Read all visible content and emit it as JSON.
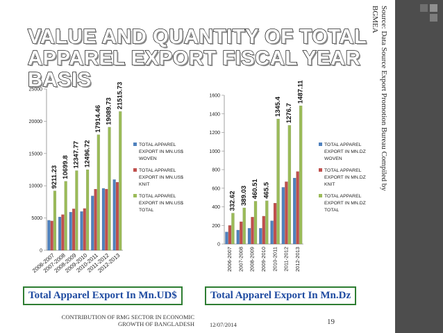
{
  "slide": {
    "title_line1": "VALUE AND QUANTITY OF TOTAL",
    "title_line2": "APPAREL EXPORT FISCAL YEAR BASIS",
    "source_line1": "Source: Data Source Export Promotion Bureau  Compiled by",
    "source_line2": "BGMEA",
    "caption_left": "Total Apparel Export In Mn.UD$",
    "caption_right": "Total Apparel Export In Mn.Dz",
    "footer_line1": "CONTRIBUTION OF RMG SECTOR IN ECONOMIC",
    "footer_line2": "GROWTH OF BANGLADESH",
    "date": "12/07/2014",
    "page_number": "19"
  },
  "colors": {
    "woven": "#4f81bd",
    "knit": "#c0504d",
    "total": "#9bbb59",
    "accent_bar": "#4d4d4d",
    "caption_border": "#2e7d32",
    "caption_text": "#1e4aa0"
  },
  "chart_data": [
    {
      "type": "bar",
      "title": "",
      "categories": [
        "2006-2007",
        "2007-2008",
        "2008-2009",
        "2009-2010",
        "2010-2011",
        "2011-2012",
        "2012-2013"
      ],
      "series": [
        {
          "name": "TOTAL APPAREL EXPORT IN MN.US$ WOVEN",
          "values": [
            4658,
            5167,
            5918,
            6013,
            8432,
            9603,
            10963
          ]
        },
        {
          "name": "TOTAL APPAREL EXPORT IN MN.US$ KNIT",
          "values": [
            4553,
            5533,
            6429,
            6483,
            9482,
            9486,
            10553
          ]
        },
        {
          "name": "TOTAL APPAREL EXPORT IN MN.US$ TOTAL",
          "values": [
            9211.23,
            10699.8,
            12347.77,
            12496.72,
            17914.46,
            19089.73,
            21515.73
          ]
        }
      ],
      "data_labels": [
        "9211.23",
        "10699.8",
        "12347.77",
        "12496.72",
        "17914.46",
        "19089.73",
        "21515.73"
      ],
      "y_ticks": [
        "0",
        "5000",
        "10000",
        "15000",
        "20000",
        "25000"
      ],
      "ylim": [
        0,
        25000
      ],
      "xlabel": "",
      "ylabel": "",
      "legend": "right"
    },
    {
      "type": "bar",
      "title": "",
      "categories": [
        "2006-2007",
        "2007-2008",
        "2008-2009",
        "2009-2010",
        "2010-2011",
        "2011-2012",
        "2012-2013"
      ],
      "series": [
        {
          "name": "TOTAL APPAREL EXPORT IN MN.DZ WOVEN",
          "values": [
            130,
            150,
            170,
            170,
            250,
            610,
            710
          ]
        },
        {
          "name": "TOTAL APPAREL EXPORT IN MN.DZ KNIT",
          "values": [
            200,
            240,
            290,
            300,
            440,
            670,
            780
          ]
        },
        {
          "name": "TOTAL APPAREL EXPORT IN MN.DZ TOTAL",
          "values": [
            332.62,
            389.03,
            460.51,
            465.5,
            1345.4,
            1276.7,
            1487.11
          ]
        }
      ],
      "data_labels": [
        "332.62",
        "389.03",
        "460.51",
        "465.5",
        "1345.4",
        "1276.7",
        "1487.11"
      ],
      "y_ticks": [
        "0",
        "200",
        "400",
        "600",
        "800",
        "1000",
        "1200",
        "1400",
        "1600"
      ],
      "ylim": [
        0,
        1600
      ],
      "xlabel": "",
      "ylabel": "",
      "legend": "right"
    }
  ]
}
